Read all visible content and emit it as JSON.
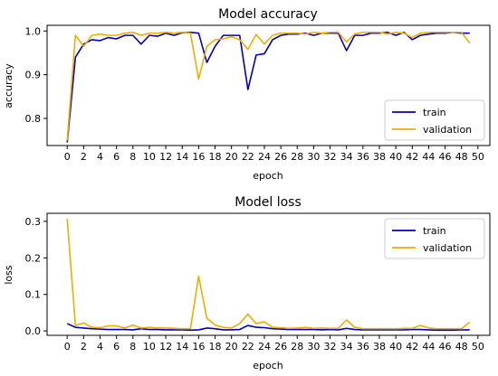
{
  "chart_data": [
    {
      "type": "line",
      "title": "Model accuracy",
      "xlabel": "epoch",
      "ylabel": "accuracy",
      "x": [
        0,
        1,
        2,
        3,
        4,
        5,
        6,
        7,
        8,
        9,
        10,
        11,
        12,
        13,
        14,
        15,
        16,
        17,
        18,
        19,
        20,
        21,
        22,
        23,
        24,
        25,
        26,
        27,
        28,
        29,
        30,
        31,
        32,
        33,
        34,
        35,
        36,
        37,
        38,
        39,
        40,
        41,
        42,
        43,
        44,
        45,
        46,
        47,
        48,
        49
      ],
      "xticks": [
        "0",
        "2",
        "4",
        "6",
        "8",
        "10",
        "12",
        "14",
        "16",
        "18",
        "20",
        "22",
        "24",
        "26",
        "28",
        "30",
        "32",
        "34",
        "36",
        "38",
        "40",
        "42",
        "44",
        "46",
        "48",
        "50"
      ],
      "xtick_values": [
        0,
        2,
        4,
        6,
        8,
        10,
        12,
        14,
        16,
        18,
        20,
        22,
        24,
        26,
        28,
        30,
        32,
        34,
        36,
        38,
        40,
        42,
        44,
        46,
        48,
        50
      ],
      "yticks": [
        "0.8",
        "0.9",
        "1.0"
      ],
      "ytick_values": [
        0.8,
        0.9,
        1.0
      ],
      "xlim": [
        -2.45,
        51.45
      ],
      "ylim": [
        0.738,
        1.013
      ],
      "legend_position": "lower-right",
      "series": [
        {
          "name": "train",
          "color": "#0000bf",
          "values": [
            0.745,
            0.94,
            0.97,
            0.98,
            0.978,
            0.985,
            0.982,
            0.99,
            0.99,
            0.97,
            0.99,
            0.988,
            0.995,
            0.99,
            0.996,
            0.997,
            0.995,
            0.928,
            0.965,
            0.99,
            0.99,
            0.99,
            0.866,
            0.945,
            0.948,
            0.98,
            0.99,
            0.993,
            0.993,
            0.995,
            0.99,
            0.995,
            0.995,
            0.995,
            0.955,
            0.99,
            0.99,
            0.995,
            0.995,
            0.997,
            0.99,
            0.997,
            0.98,
            0.99,
            0.993,
            0.995,
            0.995,
            0.997,
            0.995,
            0.995
          ]
        },
        {
          "name": "validation",
          "color": "#f0ad00",
          "values": [
            0.75,
            0.99,
            0.965,
            0.99,
            0.993,
            0.99,
            0.99,
            0.995,
            0.997,
            0.99,
            0.995,
            0.995,
            0.997,
            0.995,
            0.997,
            0.995,
            0.89,
            0.965,
            0.98,
            0.982,
            0.987,
            0.98,
            0.958,
            0.992,
            0.97,
            0.99,
            0.995,
            0.995,
            0.995,
            0.993,
            0.997,
            0.995,
            0.997,
            0.997,
            0.975,
            0.993,
            0.997,
            0.997,
            0.997,
            0.993,
            0.997,
            0.995,
            0.985,
            0.995,
            0.997,
            0.997,
            0.997,
            0.997,
            0.997,
            0.972
          ]
        }
      ]
    },
    {
      "type": "line",
      "title": "Model loss",
      "xlabel": "epoch",
      "ylabel": "loss",
      "x": [
        0,
        1,
        2,
        3,
        4,
        5,
        6,
        7,
        8,
        9,
        10,
        11,
        12,
        13,
        14,
        15,
        16,
        17,
        18,
        19,
        20,
        21,
        22,
        23,
        24,
        25,
        26,
        27,
        28,
        29,
        30,
        31,
        32,
        33,
        34,
        35,
        36,
        37,
        38,
        39,
        40,
        41,
        42,
        43,
        44,
        45,
        46,
        47,
        48,
        49
      ],
      "xticks": [
        "0",
        "2",
        "4",
        "6",
        "8",
        "10",
        "12",
        "14",
        "16",
        "18",
        "20",
        "22",
        "24",
        "26",
        "28",
        "30",
        "32",
        "34",
        "36",
        "38",
        "40",
        "42",
        "44",
        "46",
        "48",
        "50"
      ],
      "xtick_values": [
        0,
        2,
        4,
        6,
        8,
        10,
        12,
        14,
        16,
        18,
        20,
        22,
        24,
        26,
        28,
        30,
        32,
        34,
        36,
        38,
        40,
        42,
        44,
        46,
        48,
        50
      ],
      "yticks": [
        "0.0",
        "0.1",
        "0.2",
        "0.3"
      ],
      "ytick_values": [
        0.0,
        0.1,
        0.2,
        0.3
      ],
      "xlim": [
        -2.45,
        51.45
      ],
      "ylim": [
        -0.012,
        0.322
      ],
      "legend_position": "upper-right",
      "series": [
        {
          "name": "train",
          "color": "#0000bf",
          "values": [
            0.02,
            0.01,
            0.008,
            0.006,
            0.005,
            0.004,
            0.004,
            0.004,
            0.003,
            0.006,
            0.004,
            0.004,
            0.003,
            0.003,
            0.003,
            0.002,
            0.003,
            0.008,
            0.006,
            0.003,
            0.003,
            0.004,
            0.015,
            0.01,
            0.009,
            0.006,
            0.005,
            0.004,
            0.004,
            0.004,
            0.004,
            0.003,
            0.004,
            0.003,
            0.007,
            0.004,
            0.003,
            0.003,
            0.003,
            0.003,
            0.003,
            0.003,
            0.004,
            0.004,
            0.003,
            0.002,
            0.002,
            0.002,
            0.003,
            0.003
          ]
        },
        {
          "name": "validation",
          "color": "#f0ad00",
          "values": [
            0.307,
            0.015,
            0.022,
            0.01,
            0.009,
            0.014,
            0.014,
            0.008,
            0.016,
            0.008,
            0.01,
            0.008,
            0.008,
            0.007,
            0.006,
            0.006,
            0.15,
            0.035,
            0.016,
            0.01,
            0.008,
            0.02,
            0.046,
            0.02,
            0.025,
            0.01,
            0.009,
            0.007,
            0.008,
            0.01,
            0.007,
            0.008,
            0.007,
            0.007,
            0.03,
            0.01,
            0.006,
            0.006,
            0.006,
            0.006,
            0.006,
            0.007,
            0.007,
            0.015,
            0.008,
            0.006,
            0.006,
            0.006,
            0.006,
            0.024
          ]
        }
      ]
    }
  ]
}
